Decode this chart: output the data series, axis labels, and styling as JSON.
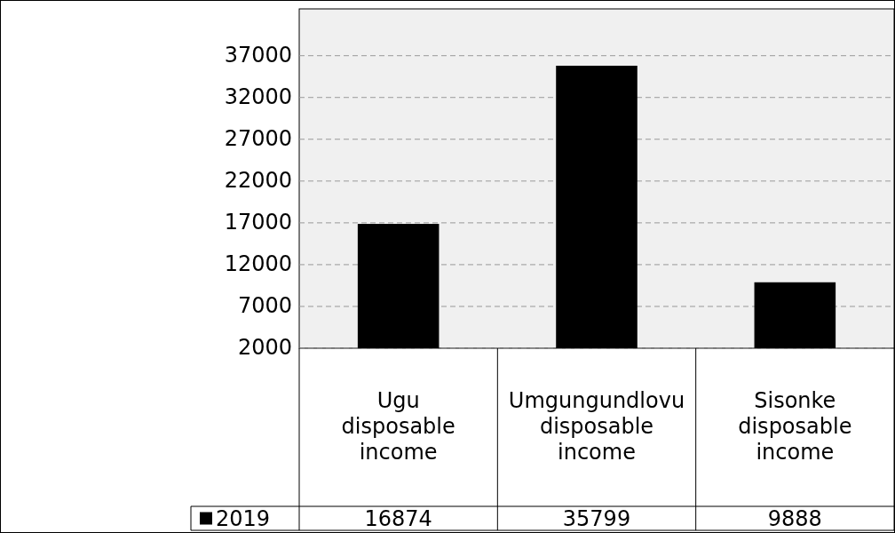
{
  "chart_data": {
    "type": "bar",
    "categories": [
      "Ugu disposable income",
      "Umgungundlovu disposable income",
      "Sisonke disposable income"
    ],
    "series": [
      {
        "name": "2019",
        "color": "#000000",
        "values": [
          16874,
          35799,
          9888
        ]
      }
    ],
    "ylim": [
      2000,
      42600
    ],
    "yticks": [
      2000,
      7000,
      12000,
      17000,
      22000,
      27000,
      32000,
      37000
    ],
    "grid": "y",
    "data_labels": true,
    "legend": "bottom left"
  }
}
